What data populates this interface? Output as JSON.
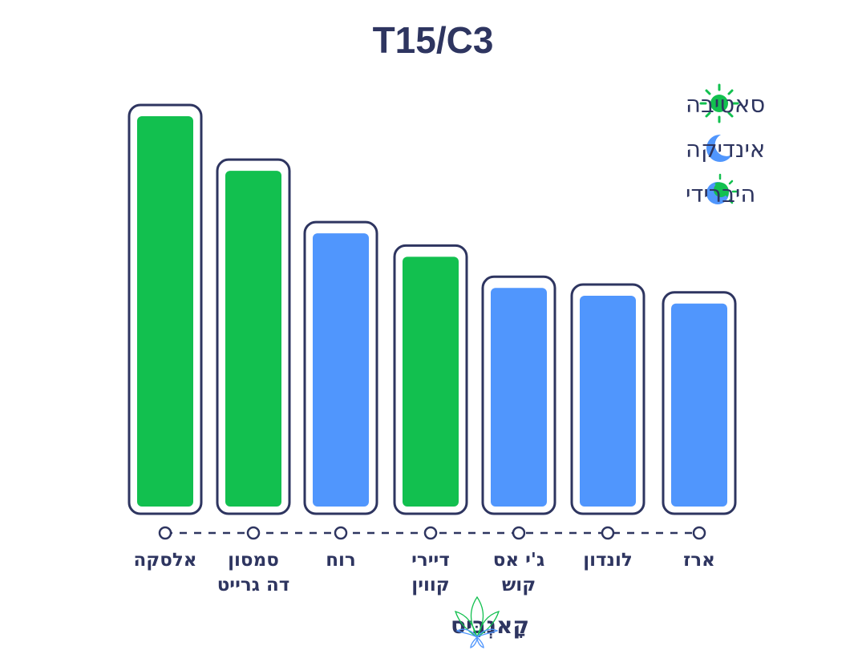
{
  "chart_data": {
    "type": "bar",
    "title": "T15/C3",
    "categories": [
      [
        "אלסקה"
      ],
      [
        "סמסון",
        "דה גרייט"
      ],
      [
        "רוח"
      ],
      [
        "דיירי",
        "קווין"
      ],
      [
        "ג'י אס",
        "קוש"
      ],
      [
        "לונדון"
      ],
      [
        "ארז"
      ]
    ],
    "values": [
      100,
      86,
      70,
      64,
      56,
      54,
      52
    ],
    "types": [
      "sativa",
      "sativa",
      "indica",
      "sativa",
      "indica",
      "indica",
      "indica"
    ],
    "ylim": [
      0,
      100
    ],
    "axis_labels_shown": false,
    "grid": false,
    "legend_placement": "top-right",
    "legend": [
      {
        "key": "sativa",
        "label": "סאטיבה",
        "icon": "sun-icon"
      },
      {
        "key": "indica",
        "label": "אינדיקה",
        "icon": "moon-icon"
      },
      {
        "key": "hybrid",
        "label": "היברידי",
        "icon": "half-sun-moon-icon"
      }
    ]
  },
  "colors": {
    "sativa": "#12c04f",
    "indica": "#5096fd",
    "outline": "#2e3560"
  },
  "logo": {
    "text": "קָאנְבִּיס"
  }
}
